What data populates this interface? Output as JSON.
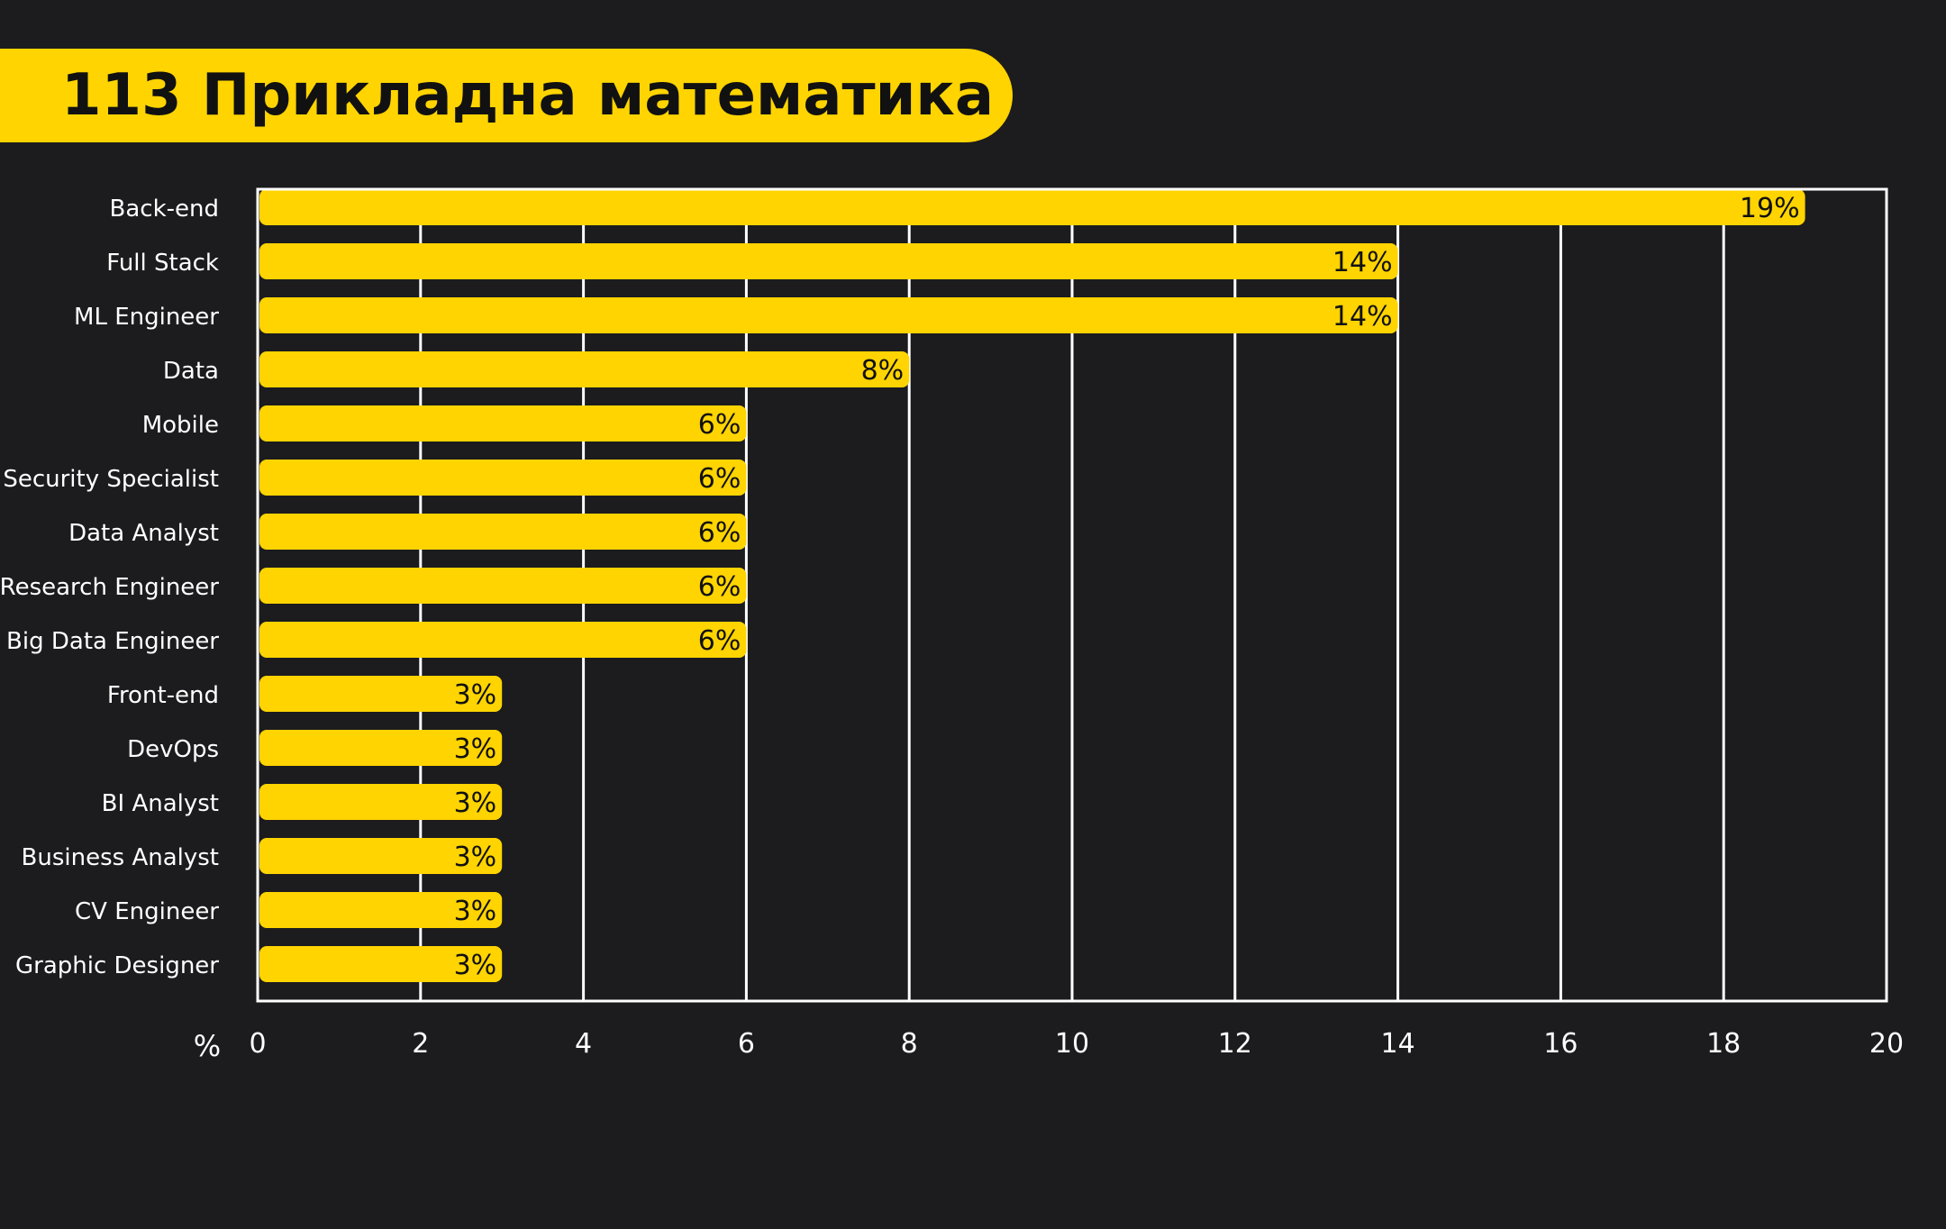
{
  "title": "113 Прикладна математика",
  "colors": {
    "background": "#1c1c1e",
    "accent": "#ffd400",
    "grid": "#ffffff",
    "text": "#ffffff",
    "bar_label": "#111111"
  },
  "chart_data": {
    "type": "bar",
    "orientation": "horizontal",
    "title": "113 Прикладна математика",
    "categories": [
      "Back-end",
      "Full Stack",
      "ML Engineer",
      "Data",
      "Mobile",
      "Security Specialist",
      "Data Analyst",
      "Research Engineer",
      "Big Data Engineer",
      "Front-end",
      "DevOps",
      "BI Analyst",
      "Business Analyst",
      "CV Engineer",
      "Graphic Designer"
    ],
    "values": [
      19,
      14,
      14,
      8,
      6,
      6,
      6,
      6,
      6,
      3,
      3,
      3,
      3,
      3,
      3
    ],
    "data_labels": [
      "19%",
      "14%",
      "14%",
      "8%",
      "6%",
      "6%",
      "6%",
      "6%",
      "6%",
      "3%",
      "3%",
      "3%",
      "3%",
      "3%",
      "3%"
    ],
    "xlabel": "%",
    "xlim": [
      0,
      20
    ],
    "xticks": [
      0,
      2,
      4,
      6,
      8,
      10,
      12,
      14,
      16,
      18,
      20
    ],
    "xtick_labels": [
      "0",
      "2",
      "4",
      "6",
      "8",
      "10",
      "12",
      "14",
      "16",
      "18",
      "20"
    ],
    "grid": true,
    "legend": "none"
  }
}
